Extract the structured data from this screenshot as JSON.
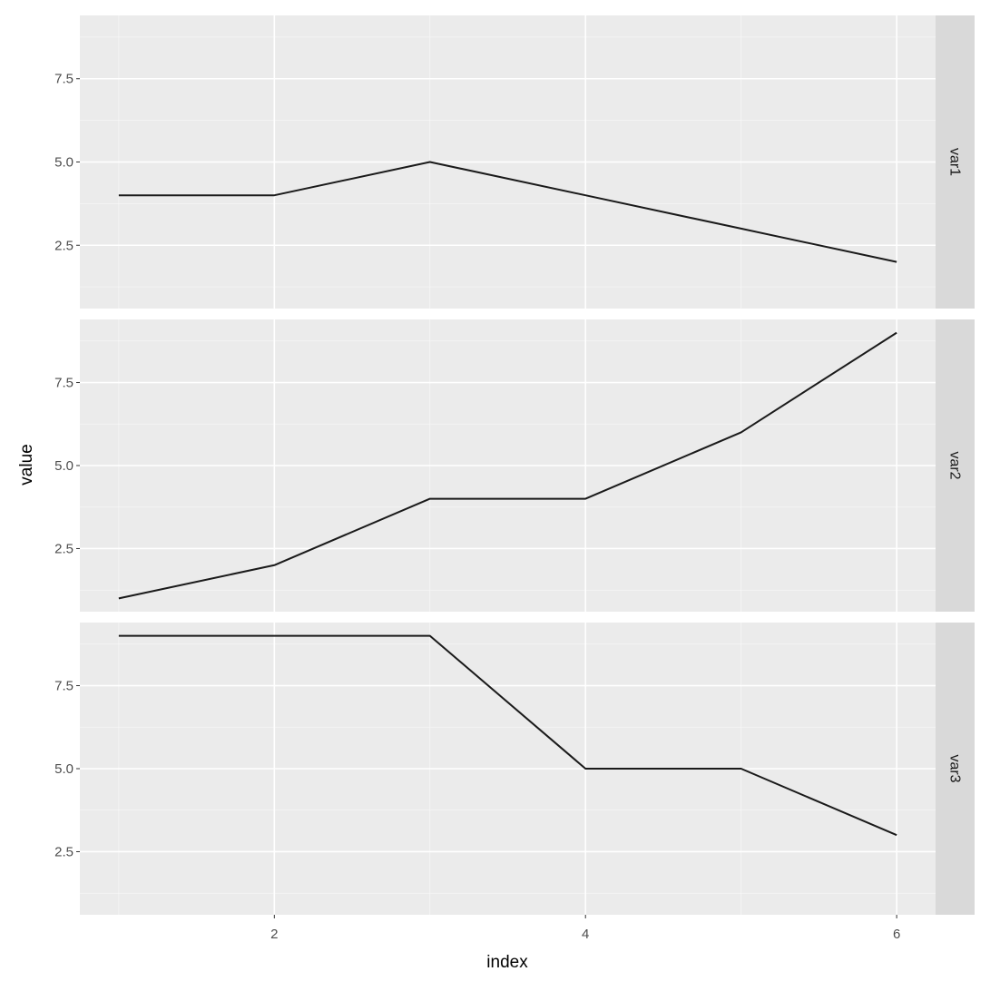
{
  "chart_data": {
    "type": "line",
    "xlabel": "index",
    "ylabel": "value",
    "x": [
      1,
      2,
      3,
      4,
      5,
      6
    ],
    "xlim": [
      0.75,
      6.25
    ],
    "x_ticks": [
      2,
      4,
      6
    ],
    "x_tick_labels": [
      "2",
      "4",
      "6"
    ],
    "ylim": [
      0.6,
      9.4
    ],
    "y_ticks": [
      2.5,
      5.0,
      7.5
    ],
    "y_tick_labels": [
      "2.5",
      "5.0",
      "7.5"
    ],
    "grid": true,
    "facet_layout": "rows",
    "strip_position": "right",
    "series": [
      {
        "name": "var1",
        "values": [
          4,
          4,
          5,
          4,
          3,
          2
        ]
      },
      {
        "name": "var2",
        "values": [
          1,
          2,
          4,
          4,
          6,
          9
        ]
      },
      {
        "name": "var3",
        "values": [
          9,
          9,
          9,
          5,
          5,
          3
        ]
      }
    ],
    "colors": {
      "panel_background": "#ebebeb",
      "grid_major": "#ffffff",
      "strip_background": "#d9d9d9",
      "line": "#1a1a1a",
      "tick": "#333333"
    }
  }
}
